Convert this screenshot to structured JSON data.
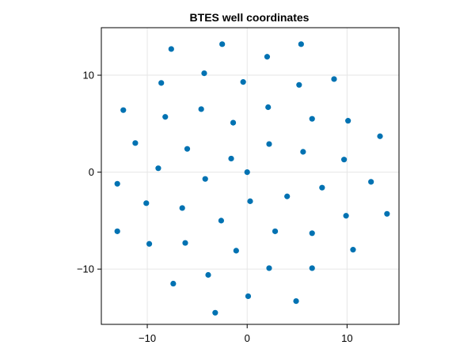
{
  "chart_data": {
    "type": "scatter",
    "title": "BTES well coordinates",
    "xlabel": "",
    "ylabel": "",
    "xlim": [
      -14.6,
      15.2
    ],
    "ylim": [
      -15.7,
      14.9
    ],
    "xticks": [
      -10,
      0,
      10
    ],
    "yticks": [
      -10,
      0,
      10
    ],
    "xtick_labels": [
      "−10",
      "0",
      "10"
    ],
    "ytick_labels": [
      "−10",
      "0",
      "10"
    ],
    "grid": true,
    "marker_color": "#0072b2",
    "series": [
      {
        "points": [
          [
            -2.5,
            13.2
          ],
          [
            5.4,
            13.2
          ],
          [
            -7.6,
            12.7
          ],
          [
            2.0,
            11.9
          ],
          [
            -4.3,
            10.2
          ],
          [
            -8.6,
            9.2
          ],
          [
            -0.4,
            9.3
          ],
          [
            5.2,
            9.0
          ],
          [
            8.7,
            9.6
          ],
          [
            -12.4,
            6.4
          ],
          [
            -4.6,
            6.5
          ],
          [
            2.1,
            6.7
          ],
          [
            -8.2,
            5.7
          ],
          [
            -1.4,
            5.1
          ],
          [
            6.5,
            5.5
          ],
          [
            10.1,
            5.3
          ],
          [
            -11.2,
            3.0
          ],
          [
            -6.0,
            2.4
          ],
          [
            2.2,
            2.9
          ],
          [
            5.6,
            2.1
          ],
          [
            13.3,
            3.7
          ],
          [
            -1.6,
            1.4
          ],
          [
            9.7,
            1.3
          ],
          [
            -8.9,
            0.4
          ],
          [
            0.0,
            0.0
          ],
          [
            -4.2,
            -0.7
          ],
          [
            -13.0,
            -1.2
          ],
          [
            7.5,
            -1.6
          ],
          [
            12.4,
            -1.0
          ],
          [
            4.0,
            -2.5
          ],
          [
            -10.1,
            -3.2
          ],
          [
            0.3,
            -3.0
          ],
          [
            -6.5,
            -3.7
          ],
          [
            9.9,
            -4.5
          ],
          [
            14.0,
            -4.3
          ],
          [
            -2.6,
            -5.0
          ],
          [
            -13.0,
            -6.1
          ],
          [
            2.8,
            -6.1
          ],
          [
            6.5,
            -6.3
          ],
          [
            -9.8,
            -7.4
          ],
          [
            -6.2,
            -7.3
          ],
          [
            -1.1,
            -8.1
          ],
          [
            10.6,
            -8.0
          ],
          [
            2.2,
            -9.9
          ],
          [
            6.5,
            -9.9
          ],
          [
            -3.9,
            -10.6
          ],
          [
            -7.4,
            -11.5
          ],
          [
            0.1,
            -12.8
          ],
          [
            4.9,
            -13.3
          ],
          [
            -3.2,
            -14.5
          ]
        ]
      }
    ]
  }
}
